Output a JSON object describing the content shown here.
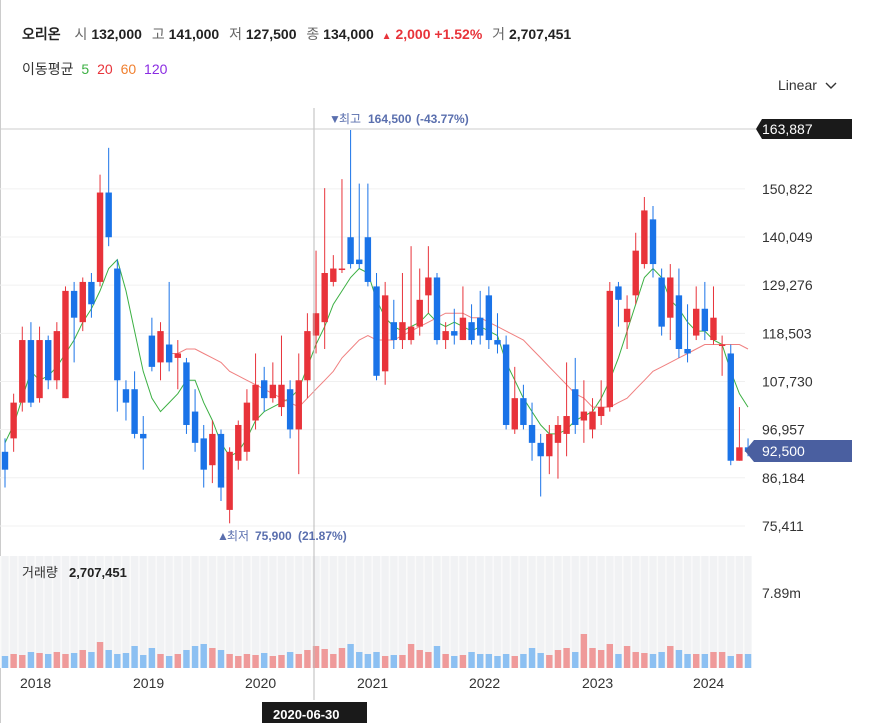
{
  "header": {
    "name": "오리온",
    "open_label": "시",
    "open": "132,000",
    "high_label": "고",
    "high": "141,000",
    "low_label": "저",
    "low": "127,500",
    "close_label": "종",
    "close": "134,000",
    "change_arrow": "▲",
    "change": "2,000",
    "change_pct": "+1.52%",
    "volume_label": "거",
    "volume": "2,707,451"
  },
  "ma_legend": {
    "label": "이동평균",
    "p5": "5",
    "p20": "20",
    "p60": "60",
    "p120": "120"
  },
  "scale_button": {
    "label": "Linear",
    "icon": "chevron-down-icon"
  },
  "colors": {
    "up": "#e8333a",
    "down": "#1a73e8",
    "ma5": "#3cb043",
    "ma20": "#f08080",
    "ma60": "#f4a460",
    "ma120": "#8a2be2",
    "current_badge": "#4a5fa0"
  },
  "chart_data": {
    "type": "candlestick",
    "y_axis_ticks": [
      "163,887",
      "150,822",
      "140,049",
      "129,276",
      "118,503",
      "107,730",
      "96,957",
      "86,184",
      "75,411"
    ],
    "x_axis_ticks": [
      "2018",
      "2019",
      "2020",
      "2021",
      "2022",
      "2023",
      "2024"
    ],
    "crosshair_date": "2020-06-30",
    "current_price_label": "92,500",
    "crosshair_price_label": "163,887",
    "max_marker": {
      "label": "최고",
      "value": "164,500",
      "pct": "(-43.77%)"
    },
    "min_marker": {
      "label": "최저",
      "value": "75,900",
      "pct": "(21.87%)"
    },
    "volume": {
      "label": "거래량",
      "value": "2,707,451",
      "axis_tick": "7.89m"
    },
    "candles": [
      {
        "o": 92,
        "c": 88,
        "h": 95,
        "l": 84
      },
      {
        "o": 95,
        "c": 103,
        "h": 105,
        "l": 92
      },
      {
        "o": 103,
        "c": 117,
        "h": 120,
        "l": 101
      },
      {
        "o": 117,
        "c": 103,
        "h": 121,
        "l": 102
      },
      {
        "o": 104,
        "c": 117,
        "h": 120,
        "l": 103
      },
      {
        "o": 117,
        "c": 108,
        "h": 118,
        "l": 106
      },
      {
        "o": 108,
        "c": 119,
        "h": 121,
        "l": 106
      },
      {
        "o": 104,
        "c": 128,
        "h": 129,
        "l": 104
      },
      {
        "o": 128,
        "c": 122,
        "h": 130,
        "l": 112
      },
      {
        "o": 121,
        "c": 130,
        "h": 131,
        "l": 119
      },
      {
        "o": 130,
        "c": 125,
        "h": 132,
        "l": 122
      },
      {
        "o": 130,
        "c": 150,
        "h": 154,
        "l": 129
      },
      {
        "o": 150,
        "c": 140,
        "h": 160,
        "l": 138
      },
      {
        "o": 133,
        "c": 108,
        "h": 135,
        "l": 101
      },
      {
        "o": 106,
        "c": 103,
        "h": 108,
        "l": 99
      },
      {
        "o": 106,
        "c": 96,
        "h": 110,
        "l": 95
      },
      {
        "o": 96,
        "c": 95,
        "h": 100,
        "l": 88
      },
      {
        "o": 118,
        "c": 111,
        "h": 122,
        "l": 110
      },
      {
        "o": 112,
        "c": 119,
        "h": 121,
        "l": 108
      },
      {
        "o": 116,
        "c": 112,
        "h": 130,
        "l": 110
      },
      {
        "o": 113,
        "c": 114,
        "h": 117,
        "l": 106
      },
      {
        "o": 112,
        "c": 98,
        "h": 113,
        "l": 96
      },
      {
        "o": 101,
        "c": 94,
        "h": 106,
        "l": 92
      },
      {
        "o": 95,
        "c": 88,
        "h": 98,
        "l": 84
      },
      {
        "o": 89,
        "c": 96,
        "h": 99,
        "l": 85
      },
      {
        "o": 96,
        "c": 84,
        "h": 97,
        "l": 81
      },
      {
        "o": 79,
        "c": 92,
        "h": 93,
        "l": 76
      },
      {
        "o": 90,
        "c": 98,
        "h": 99,
        "l": 88
      },
      {
        "o": 92,
        "c": 103,
        "h": 106,
        "l": 90
      },
      {
        "o": 99,
        "c": 107,
        "h": 114,
        "l": 97
      },
      {
        "o": 108,
        "c": 104,
        "h": 111,
        "l": 101
      },
      {
        "o": 104,
        "c": 107,
        "h": 112,
        "l": 103
      },
      {
        "o": 102,
        "c": 107,
        "h": 118,
        "l": 100
      },
      {
        "o": 106,
        "c": 97,
        "h": 108,
        "l": 95
      },
      {
        "o": 97,
        "c": 108,
        "h": 114,
        "l": 87
      },
      {
        "o": 108,
        "c": 119,
        "h": 123,
        "l": 104
      },
      {
        "o": 118,
        "c": 123,
        "h": 137,
        "l": 114
      },
      {
        "o": 121,
        "c": 132,
        "h": 151,
        "l": 115
      },
      {
        "o": 130,
        "c": 133,
        "h": 136,
        "l": 129
      },
      {
        "o": 133,
        "c": 133,
        "h": 153,
        "l": 132
      },
      {
        "o": 140,
        "c": 134,
        "h": 164,
        "l": 133
      },
      {
        "o": 135,
        "c": 134,
        "h": 152,
        "l": 133
      },
      {
        "o": 140,
        "c": 130,
        "h": 152,
        "l": 129
      },
      {
        "o": 129,
        "c": 109,
        "h": 132,
        "l": 108
      },
      {
        "o": 110,
        "c": 127,
        "h": 130,
        "l": 107
      },
      {
        "o": 121,
        "c": 117,
        "h": 126,
        "l": 115
      },
      {
        "o": 117,
        "c": 121,
        "h": 132,
        "l": 115
      },
      {
        "o": 117,
        "c": 120,
        "h": 138,
        "l": 116
      },
      {
        "o": 120,
        "c": 126,
        "h": 133,
        "l": 118
      },
      {
        "o": 127,
        "c": 131,
        "h": 138,
        "l": 123
      },
      {
        "o": 131,
        "c": 117,
        "h": 132,
        "l": 116
      },
      {
        "o": 117,
        "c": 119,
        "h": 121,
        "l": 115
      },
      {
        "o": 119,
        "c": 118,
        "h": 124,
        "l": 116
      },
      {
        "o": 117,
        "c": 122,
        "h": 129,
        "l": 117
      },
      {
        "o": 121,
        "c": 117,
        "h": 125,
        "l": 116
      },
      {
        "o": 122,
        "c": 118,
        "h": 128,
        "l": 116
      },
      {
        "o": 127,
        "c": 117,
        "h": 129,
        "l": 115
      },
      {
        "o": 117,
        "c": 116,
        "h": 123,
        "l": 114
      },
      {
        "o": 116,
        "c": 98,
        "h": 118,
        "l": 97
      },
      {
        "o": 97,
        "c": 104,
        "h": 111,
        "l": 96
      },
      {
        "o": 104,
        "c": 98,
        "h": 107,
        "l": 97
      },
      {
        "o": 98,
        "c": 94,
        "h": 103,
        "l": 90
      },
      {
        "o": 94,
        "c": 91,
        "h": 96,
        "l": 82
      },
      {
        "o": 91,
        "c": 96,
        "h": 98,
        "l": 87
      },
      {
        "o": 94,
        "c": 98,
        "h": 100,
        "l": 86
      },
      {
        "o": 96,
        "c": 100,
        "h": 112,
        "l": 91
      },
      {
        "o": 106,
        "c": 98,
        "h": 113,
        "l": 96
      },
      {
        "o": 99,
        "c": 101,
        "h": 108,
        "l": 94
      },
      {
        "o": 97,
        "c": 101,
        "h": 104,
        "l": 95
      },
      {
        "o": 100,
        "c": 102,
        "h": 108,
        "l": 98
      },
      {
        "o": 102,
        "c": 128,
        "h": 130,
        "l": 101
      },
      {
        "o": 129,
        "c": 126,
        "h": 130,
        "l": 120
      },
      {
        "o": 121,
        "c": 124,
        "h": 127,
        "l": 115
      },
      {
        "o": 127,
        "c": 137,
        "h": 141,
        "l": 125
      },
      {
        "o": 134,
        "c": 146,
        "h": 149,
        "l": 133
      },
      {
        "o": 144,
        "c": 134,
        "h": 147,
        "l": 131
      },
      {
        "o": 131,
        "c": 120,
        "h": 133,
        "l": 118
      },
      {
        "o": 122,
        "c": 131,
        "h": 134,
        "l": 117
      },
      {
        "o": 127,
        "c": 115,
        "h": 133,
        "l": 113
      },
      {
        "o": 115,
        "c": 114,
        "h": 125,
        "l": 112
      },
      {
        "o": 118,
        "c": 124,
        "h": 129,
        "l": 117
      },
      {
        "o": 124,
        "c": 119,
        "h": 130,
        "l": 117
      },
      {
        "o": 117,
        "c": 122,
        "h": 129,
        "l": 116
      },
      {
        "o": 116,
        "c": 116,
        "h": 118,
        "l": 109
      },
      {
        "o": 114,
        "c": 90,
        "h": 116,
        "l": 89
      },
      {
        "o": 90,
        "c": 93,
        "h": 102,
        "l": 90
      },
      {
        "o": 93,
        "c": 92,
        "h": 95,
        "l": 91
      }
    ],
    "ma5": [
      94,
      98,
      104,
      110,
      108,
      109,
      111,
      114,
      117,
      121,
      124,
      128,
      133,
      135,
      128,
      119,
      110,
      104,
      101,
      103,
      105,
      108,
      108,
      103,
      99,
      94,
      91,
      92,
      95,
      99,
      101,
      102,
      103,
      104,
      106,
      111,
      116,
      120,
      125,
      128,
      131,
      133,
      132,
      126,
      122,
      120,
      119,
      120,
      121,
      123,
      121,
      120,
      121,
      120,
      119,
      120,
      119,
      118,
      112,
      108,
      104,
      101,
      98,
      96,
      96,
      97,
      99,
      100,
      101,
      104,
      108,
      113,
      119,
      125,
      131,
      133,
      131,
      126,
      124,
      121,
      119,
      119,
      117,
      116,
      110,
      105,
      102
    ],
    "ma20": [
      null,
      null,
      null,
      null,
      null,
      null,
      null,
      null,
      null,
      null,
      null,
      null,
      null,
      null,
      null,
      null,
      null,
      null,
      null,
      114,
      114,
      115,
      115,
      114,
      113,
      112,
      110,
      109,
      108,
      107,
      106,
      105,
      104,
      103,
      102,
      104,
      106,
      108,
      110,
      113,
      115,
      117,
      118,
      117,
      117,
      117,
      118,
      119,
      120,
      121,
      122,
      123,
      123,
      123,
      122,
      122,
      121,
      120,
      119,
      118,
      117,
      115,
      113,
      111,
      109,
      107,
      105,
      104,
      102,
      102,
      102,
      103,
      104,
      106,
      108,
      110,
      111,
      112,
      113,
      114,
      115,
      116,
      116,
      116,
      116,
      116,
      115
    ]
  }
}
